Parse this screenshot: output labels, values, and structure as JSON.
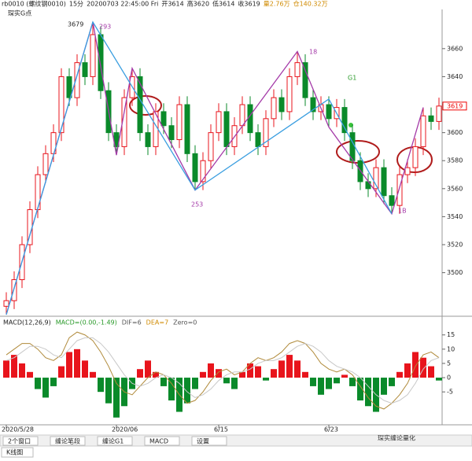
{
  "header": {
    "symbol": "rb0010 (螺纹钢0010)",
    "period": "15分",
    "time": "20200703 22:45:00 Fri",
    "open": "开3614",
    "high": "高3620",
    "low": "低3614",
    "close": "收3619",
    "volume": "量2.76万",
    "position": "仓140.32万",
    "indicator": "琛实G点"
  },
  "chart_data": [
    {
      "type": "candlestick",
      "open": [
        3476,
        3480,
        3495,
        3520,
        3545,
        3570,
        3585,
        3600,
        3640,
        3625,
        3650,
        3640,
        3670,
        3630,
        3600,
        3590,
        3625,
        3640,
        3600,
        3590,
        3615,
        3605,
        3595,
        3620,
        3585,
        3565,
        3580,
        3600,
        3615,
        3590,
        3605,
        3620,
        3600,
        3590,
        3610,
        3625,
        3615,
        3640,
        3650,
        3625,
        3615,
        3620,
        3610,
        3618,
        3600,
        3580,
        3565,
        3560,
        3575,
        3555,
        3548,
        3570,
        3575,
        3590,
        3612,
        3608
      ],
      "high": [
        3486,
        3501,
        3526,
        3551,
        3576,
        3591,
        3606,
        3646,
        3646,
        3656,
        3656,
        3679,
        3676,
        3636,
        3606,
        3631,
        3646,
        3646,
        3606,
        3621,
        3621,
        3611,
        3626,
        3626,
        3591,
        3586,
        3606,
        3621,
        3621,
        3611,
        3626,
        3626,
        3606,
        3616,
        3631,
        3631,
        3646,
        3658,
        3656,
        3631,
        3626,
        3626,
        3624,
        3624,
        3606,
        3586,
        3571,
        3581,
        3581,
        3561,
        3576,
        3581,
        3596,
        3618,
        3618,
        3625
      ],
      "low": [
        3470,
        3474,
        3489,
        3514,
        3539,
        3564,
        3579,
        3594,
        3619,
        3619,
        3634,
        3634,
        3624,
        3594,
        3584,
        3584,
        3619,
        3594,
        3584,
        3584,
        3599,
        3589,
        3589,
        3579,
        3559,
        3559,
        3574,
        3594,
        3584,
        3584,
        3599,
        3594,
        3584,
        3584,
        3604,
        3609,
        3609,
        3634,
        3619,
        3609,
        3609,
        3604,
        3604,
        3594,
        3574,
        3559,
        3554,
        3554,
        3549,
        3542,
        3542,
        3564,
        3569,
        3584,
        3602,
        3602
      ],
      "close": [
        3480,
        3495,
        3520,
        3545,
        3570,
        3585,
        3600,
        3640,
        3625,
        3650,
        3640,
        3670,
        3630,
        3600,
        3590,
        3625,
        3640,
        3600,
        3590,
        3615,
        3605,
        3595,
        3620,
        3585,
        3565,
        3580,
        3600,
        3615,
        3590,
        3605,
        3620,
        3600,
        3590,
        3610,
        3625,
        3615,
        3640,
        3650,
        3625,
        3615,
        3620,
        3610,
        3618,
        3600,
        3580,
        3565,
        3560,
        3575,
        3555,
        3548,
        3570,
        3575,
        3590,
        3612,
        3608,
        3619
      ],
      "up_color": "#e8141c",
      "down_color": "#0a8a2a",
      "lines": [
        {
          "color": "#a43aa8",
          "x": [
            0,
            11,
            14,
            16,
            24,
            37,
            41,
            49,
            53
          ],
          "values": [
            3470,
            3679,
            3584,
            3646,
            3559,
            3658,
            3604,
            3542,
            3618
          ]
        },
        {
          "color": "#3a9ee0",
          "x": [
            0,
            11,
            24,
            41,
            49
          ],
          "values": [
            3470,
            3679,
            3559,
            3624,
            3542
          ]
        }
      ],
      "annotations": [
        "3679",
        "293",
        "253",
        "18",
        "G1",
        "1B"
      ],
      "last_label": "3619",
      "xlim": [
        0,
        55
      ],
      "ylim": [
        3470,
        3688
      ],
      "yticks": [
        3500,
        3520,
        3540,
        3560,
        3580,
        3600,
        3620,
        3640,
        3660
      ],
      "xticks": [
        {
          "value": 0,
          "label": "2020/5/28"
        },
        {
          "value": 14,
          "label": "2020/06"
        },
        {
          "value": 27,
          "label": "6/15"
        },
        {
          "value": 41,
          "label": "6/23"
        }
      ]
    },
    {
      "type": "macd",
      "legend": [
        "MACD(12,26,9)",
        "MACD=(0.00,-1.49)",
        "DIF=6",
        "DEA=7",
        "Zero=0"
      ],
      "values": [
        6,
        8,
        5,
        2,
        -4,
        -7,
        -3,
        4,
        9,
        10,
        6,
        2,
        -5,
        -9,
        -14,
        -10,
        -4,
        3,
        6,
        2,
        -3,
        -8,
        -12,
        -9,
        -4,
        2,
        5,
        3,
        -2,
        -4,
        2,
        5,
        4,
        -1,
        3,
        6,
        8,
        6,
        2,
        -3,
        -6,
        -4,
        -2,
        1,
        -3,
        -8,
        -10,
        -12,
        -6,
        -3,
        2,
        5,
        9,
        7,
        4,
        -1
      ],
      "pos_color": "#e8141c",
      "neg_color": "#0a8a2a",
      "series": [
        {
          "color": "#b08a3a",
          "values": [
            8,
            10,
            12,
            12,
            10,
            7,
            6,
            8,
            14,
            16,
            15,
            13,
            9,
            4,
            -2,
            -5,
            -6,
            -3,
            0,
            2,
            1,
            -2,
            -6,
            -9,
            -8,
            -5,
            -1,
            2,
            3,
            1,
            2,
            5,
            7,
            6,
            7,
            9,
            12,
            13,
            12,
            9,
            5,
            3,
            2,
            3,
            1,
            -3,
            -7,
            -10,
            -11,
            -9,
            -6,
            -2,
            4,
            8,
            9,
            7
          ]
        },
        {
          "color": "#c8c8c8",
          "values": [
            6,
            7,
            9,
            11,
            11,
            10,
            8,
            7,
            10,
            13,
            14,
            14,
            12,
            9,
            5,
            1,
            -2,
            -3,
            -2,
            0,
            1,
            0,
            -2,
            -5,
            -7,
            -6,
            -4,
            -1,
            1,
            2,
            2,
            3,
            5,
            6,
            6,
            7,
            9,
            11,
            12,
            11,
            9,
            6,
            4,
            3,
            2,
            0,
            -3,
            -6,
            -8,
            -9,
            -8,
            -6,
            -2,
            3,
            6,
            7
          ]
        }
      ],
      "xlim": [
        0,
        55
      ],
      "ylim": [
        -16,
        21
      ],
      "yticks": [
        15,
        10,
        5,
        0,
        -5
      ]
    }
  ],
  "tabs": [
    "2个窗口",
    "缠论笔段",
    "缠论G1",
    "MACD",
    "设置"
  ],
  "bottom_tab": "K线图",
  "watermark": "琛实缠论量化"
}
